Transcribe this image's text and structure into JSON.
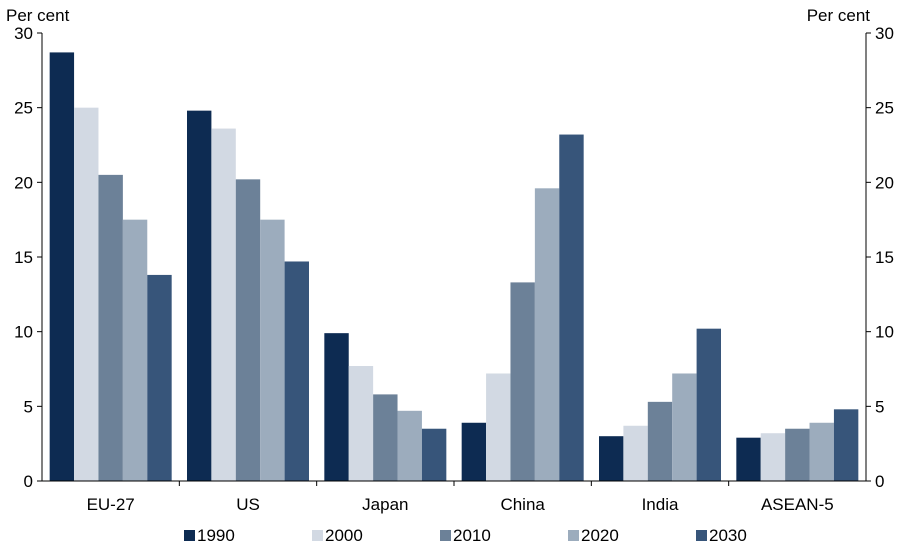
{
  "chart_data": {
    "type": "bar",
    "unit_left": "Per cent",
    "unit_right": "Per cent",
    "categories": [
      "EU-27",
      "US",
      "Japan",
      "China",
      "India",
      "ASEAN-5"
    ],
    "series": [
      {
        "name": "1990",
        "color": "#0d2b52",
        "values": [
          28.7,
          24.8,
          9.9,
          3.9,
          3.0,
          2.9
        ]
      },
      {
        "name": "2000",
        "color": "#d2d9e3",
        "values": [
          25.0,
          23.6,
          7.7,
          7.2,
          3.7,
          3.2
        ]
      },
      {
        "name": "2010",
        "color": "#6c8198",
        "values": [
          20.5,
          20.2,
          5.8,
          13.3,
          5.3,
          3.5
        ]
      },
      {
        "name": "2020",
        "color": "#9cacbd",
        "values": [
          17.5,
          17.5,
          4.7,
          19.6,
          7.2,
          3.9
        ]
      },
      {
        "name": "2030",
        "color": "#37557a",
        "values": [
          13.8,
          14.7,
          3.5,
          23.2,
          10.2,
          4.8
        ]
      }
    ],
    "yticks": [
      0,
      5,
      10,
      15,
      20,
      25,
      30
    ],
    "ylim": [
      0,
      30
    ],
    "grid": false,
    "legend_position": "bottom"
  }
}
